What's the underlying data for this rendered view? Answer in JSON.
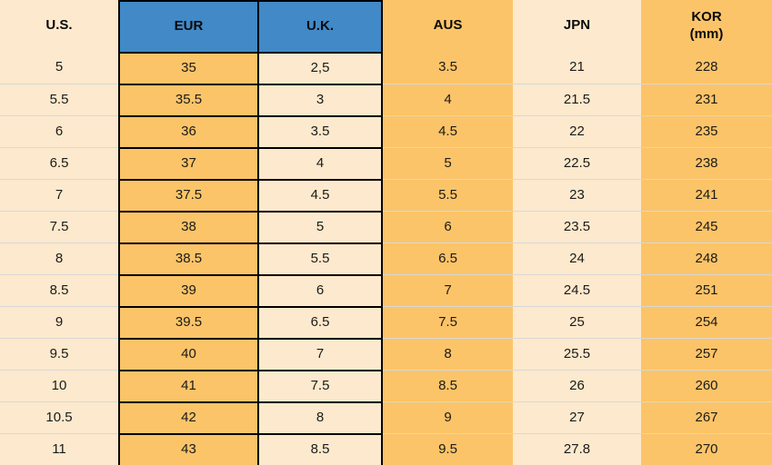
{
  "colors": {
    "header_bg": "#4189C7",
    "orange_cell": "#FCC468",
    "peach_cell": "#FDE9CD",
    "black_border": "#000000",
    "row_separator": "#D8D8D8",
    "text": "#1A1A1A",
    "header_text": "#0B0B0B"
  },
  "table": {
    "columns": [
      {
        "id": "us",
        "label": "U.S."
      },
      {
        "id": "eur",
        "label": "EUR"
      },
      {
        "id": "uk",
        "label": "U.K."
      },
      {
        "id": "aus",
        "label": "AUS"
      },
      {
        "id": "jpn",
        "label": "JPN"
      },
      {
        "id": "kor",
        "label": "KOR",
        "sublabel": "(mm)"
      }
    ]
  },
  "chart_data": {
    "type": "table",
    "columns": [
      "U.S.",
      "EUR",
      "U.K.",
      "AUS",
      "JPN",
      "KOR (mm)"
    ],
    "rows": [
      [
        "5",
        "35",
        "2,5",
        "3.5",
        "21",
        "228"
      ],
      [
        "5.5",
        "35.5",
        "3",
        "4",
        "21.5",
        "231"
      ],
      [
        "6",
        "36",
        "3.5",
        "4.5",
        "22",
        "235"
      ],
      [
        "6.5",
        "37",
        "4",
        "5",
        "22.5",
        "238"
      ],
      [
        "7",
        "37.5",
        "4.5",
        "5.5",
        "23",
        "241"
      ],
      [
        "7.5",
        "38",
        "5",
        "6",
        "23.5",
        "245"
      ],
      [
        "8",
        "38.5",
        "5.5",
        "6.5",
        "24",
        "248"
      ],
      [
        "8.5",
        "39",
        "6",
        "7",
        "24.5",
        "251"
      ],
      [
        "9",
        "39.5",
        "6.5",
        "7.5",
        "25",
        "254"
      ],
      [
        "9.5",
        "40",
        "7",
        "8",
        "25.5",
        "257"
      ],
      [
        "10",
        "41",
        "7.5",
        "8.5",
        "26",
        "260"
      ],
      [
        "10.5",
        "42",
        "8",
        "9",
        "27",
        "267"
      ],
      [
        "11",
        "43",
        "8.5",
        "9.5",
        "27.8",
        "270"
      ]
    ]
  }
}
